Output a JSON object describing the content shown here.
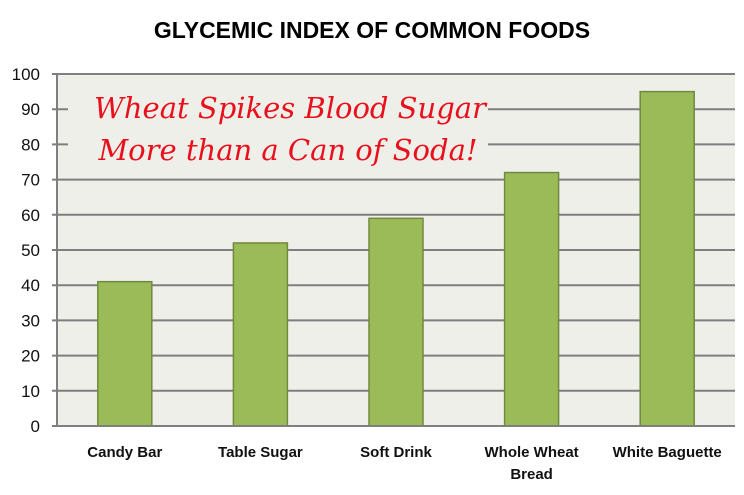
{
  "chart_data": {
    "type": "bar",
    "title": "GLYCEMIC INDEX OF COMMON FOODS",
    "categories": [
      [
        "Candy Bar"
      ],
      [
        "Table Sugar"
      ],
      [
        "Soft Drink"
      ],
      [
        "Whole Wheat",
        "Bread"
      ],
      [
        "White Baguette"
      ]
    ],
    "values": [
      41,
      52,
      59,
      72,
      95
    ],
    "xlabel": "",
    "ylabel": "",
    "ylim": [
      0,
      100
    ],
    "yticks": [
      0,
      10,
      20,
      30,
      40,
      50,
      60,
      70,
      80,
      90,
      100
    ],
    "grid": true,
    "annotation": [
      "Wheat Spikes Blood Sugar",
      "More than a Can of Soda!"
    ],
    "colors": {
      "bar": "#9bbb59",
      "bar_border": "#71893f",
      "plot_bg": "#eeefe9",
      "grid": "#7f7f7f",
      "annotation": "#e8101c"
    }
  }
}
